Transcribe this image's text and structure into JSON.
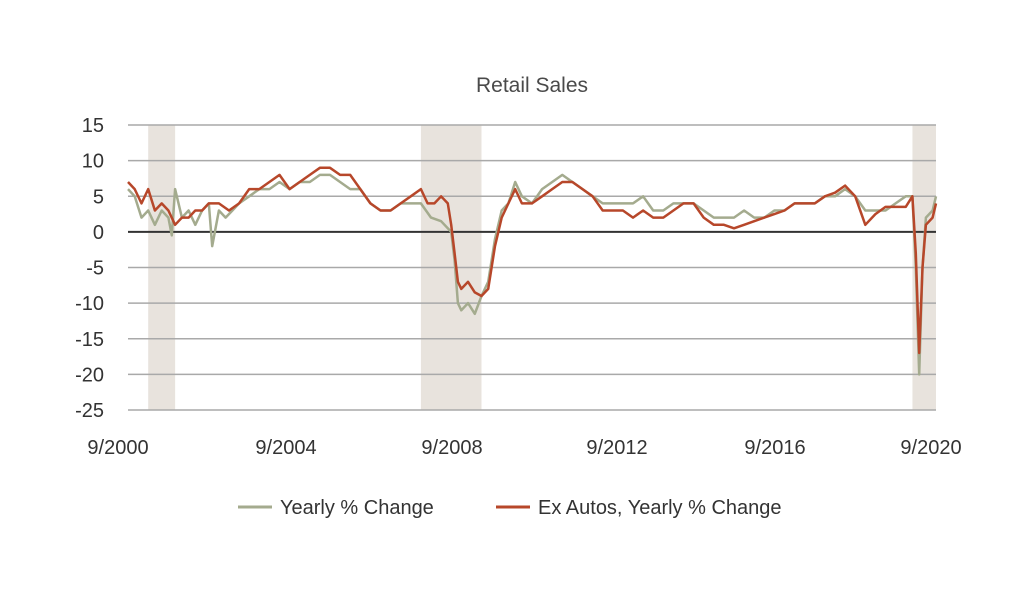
{
  "chart_data": {
    "type": "line",
    "title": "Retail Sales",
    "xlabel": "",
    "ylabel": "",
    "x_tick_labels": [
      "9/2000",
      "9/2004",
      "9/2008",
      "9/2012",
      "9/2016",
      "9/2020"
    ],
    "x_range": [
      "2000-09",
      "2020-09"
    ],
    "ylim": [
      -25,
      15
    ],
    "y_ticks": [
      15,
      10,
      5,
      0,
      -5,
      -10,
      -15,
      -20,
      -25
    ],
    "grid": true,
    "legend_position": "bottom",
    "recession_shading": [
      {
        "start": "2001-03",
        "end": "2001-11"
      },
      {
        "start": "2007-12",
        "end": "2009-06"
      },
      {
        "start": "2020-02",
        "end": "2020-09"
      }
    ],
    "shading_color": "#e8e3dd",
    "series": [
      {
        "name": "Yearly % Change",
        "color": "#a4ab8e",
        "points": [
          [
            "2000-09",
            6
          ],
          [
            "2000-11",
            5
          ],
          [
            "2001-01",
            2
          ],
          [
            "2001-03",
            3
          ],
          [
            "2001-05",
            1
          ],
          [
            "2001-07",
            3
          ],
          [
            "2001-09",
            2
          ],
          [
            "2001-10",
            -0.5
          ],
          [
            "2001-11",
            6
          ],
          [
            "2002-01",
            2
          ],
          [
            "2002-03",
            3
          ],
          [
            "2002-05",
            1
          ],
          [
            "2002-07",
            3
          ],
          [
            "2002-09",
            4
          ],
          [
            "2002-10",
            -2
          ],
          [
            "2002-12",
            3
          ],
          [
            "2003-02",
            2
          ],
          [
            "2003-04",
            3
          ],
          [
            "2003-06",
            4
          ],
          [
            "2003-09",
            5
          ],
          [
            "2003-12",
            6
          ],
          [
            "2004-03",
            6
          ],
          [
            "2004-06",
            7
          ],
          [
            "2004-09",
            6
          ],
          [
            "2004-12",
            7
          ],
          [
            "2005-03",
            7
          ],
          [
            "2005-06",
            8
          ],
          [
            "2005-09",
            8
          ],
          [
            "2005-12",
            7
          ],
          [
            "2006-03",
            6
          ],
          [
            "2006-06",
            6
          ],
          [
            "2006-09",
            4
          ],
          [
            "2006-12",
            3
          ],
          [
            "2007-03",
            3
          ],
          [
            "2007-06",
            4
          ],
          [
            "2007-09",
            4
          ],
          [
            "2007-12",
            4
          ],
          [
            "2008-03",
            2
          ],
          [
            "2008-06",
            1.5
          ],
          [
            "2008-09",
            0
          ],
          [
            "2008-10",
            -4
          ],
          [
            "2008-11",
            -10
          ],
          [
            "2008-12",
            -11
          ],
          [
            "2009-02",
            -10
          ],
          [
            "2009-04",
            -11.5
          ],
          [
            "2009-06",
            -9
          ],
          [
            "2009-08",
            -7
          ],
          [
            "2009-10",
            -1
          ],
          [
            "2009-12",
            3
          ],
          [
            "2010-02",
            4
          ],
          [
            "2010-04",
            7
          ],
          [
            "2010-06",
            5
          ],
          [
            "2010-09",
            4
          ],
          [
            "2010-12",
            6
          ],
          [
            "2011-03",
            7
          ],
          [
            "2011-06",
            8
          ],
          [
            "2011-09",
            7
          ],
          [
            "2011-12",
            6
          ],
          [
            "2012-03",
            5
          ],
          [
            "2012-06",
            4
          ],
          [
            "2012-09",
            4
          ],
          [
            "2012-12",
            4
          ],
          [
            "2013-03",
            4
          ],
          [
            "2013-06",
            5
          ],
          [
            "2013-09",
            3
          ],
          [
            "2013-12",
            3
          ],
          [
            "2014-03",
            4
          ],
          [
            "2014-06",
            4
          ],
          [
            "2014-09",
            4
          ],
          [
            "2014-12",
            3
          ],
          [
            "2015-03",
            2
          ],
          [
            "2015-06",
            2
          ],
          [
            "2015-09",
            2
          ],
          [
            "2015-12",
            3
          ],
          [
            "2016-03",
            2
          ],
          [
            "2016-06",
            2
          ],
          [
            "2016-09",
            3
          ],
          [
            "2016-12",
            3
          ],
          [
            "2017-03",
            4
          ],
          [
            "2017-06",
            4
          ],
          [
            "2017-09",
            4
          ],
          [
            "2017-12",
            5
          ],
          [
            "2018-03",
            5
          ],
          [
            "2018-06",
            6
          ],
          [
            "2018-09",
            5
          ],
          [
            "2018-12",
            3
          ],
          [
            "2019-03",
            3
          ],
          [
            "2019-06",
            3
          ],
          [
            "2019-09",
            4
          ],
          [
            "2019-12",
            5
          ],
          [
            "2020-02",
            5
          ],
          [
            "2020-03",
            -5
          ],
          [
            "2020-04",
            -20
          ],
          [
            "2020-05",
            -5
          ],
          [
            "2020-06",
            2
          ],
          [
            "2020-08",
            3
          ],
          [
            "2020-09",
            5
          ]
        ]
      },
      {
        "name": "Ex Autos, Yearly % Change",
        "color": "#b7472a",
        "points": [
          [
            "2000-09",
            7
          ],
          [
            "2000-11",
            6
          ],
          [
            "2001-01",
            4
          ],
          [
            "2001-03",
            6
          ],
          [
            "2001-05",
            3
          ],
          [
            "2001-07",
            4
          ],
          [
            "2001-09",
            3
          ],
          [
            "2001-11",
            1
          ],
          [
            "2002-01",
            2
          ],
          [
            "2002-03",
            2
          ],
          [
            "2002-05",
            3
          ],
          [
            "2002-07",
            3
          ],
          [
            "2002-09",
            4
          ],
          [
            "2002-12",
            4
          ],
          [
            "2003-03",
            3
          ],
          [
            "2003-06",
            4
          ],
          [
            "2003-09",
            6
          ],
          [
            "2003-12",
            6
          ],
          [
            "2004-03",
            7
          ],
          [
            "2004-06",
            8
          ],
          [
            "2004-09",
            6
          ],
          [
            "2004-12",
            7
          ],
          [
            "2005-03",
            8
          ],
          [
            "2005-06",
            9
          ],
          [
            "2005-09",
            9
          ],
          [
            "2005-12",
            8
          ],
          [
            "2006-03",
            8
          ],
          [
            "2006-06",
            6
          ],
          [
            "2006-09",
            4
          ],
          [
            "2006-12",
            3
          ],
          [
            "2007-03",
            3
          ],
          [
            "2007-06",
            4
          ],
          [
            "2007-09",
            5
          ],
          [
            "2007-12",
            6
          ],
          [
            "2008-02",
            4
          ],
          [
            "2008-04",
            4
          ],
          [
            "2008-06",
            5
          ],
          [
            "2008-08",
            4
          ],
          [
            "2008-09",
            1
          ],
          [
            "2008-10",
            -3
          ],
          [
            "2008-11",
            -7
          ],
          [
            "2008-12",
            -8
          ],
          [
            "2009-02",
            -7
          ],
          [
            "2009-04",
            -8.5
          ],
          [
            "2009-06",
            -9
          ],
          [
            "2009-08",
            -8
          ],
          [
            "2009-10",
            -2
          ],
          [
            "2009-12",
            2
          ],
          [
            "2010-02",
            4
          ],
          [
            "2010-04",
            6
          ],
          [
            "2010-06",
            4
          ],
          [
            "2010-09",
            4
          ],
          [
            "2010-12",
            5
          ],
          [
            "2011-03",
            6
          ],
          [
            "2011-06",
            7
          ],
          [
            "2011-09",
            7
          ],
          [
            "2011-12",
            6
          ],
          [
            "2012-03",
            5
          ],
          [
            "2012-06",
            3
          ],
          [
            "2012-09",
            3
          ],
          [
            "2012-12",
            3
          ],
          [
            "2013-03",
            2
          ],
          [
            "2013-06",
            3
          ],
          [
            "2013-09",
            2
          ],
          [
            "2013-12",
            2
          ],
          [
            "2014-03",
            3
          ],
          [
            "2014-06",
            4
          ],
          [
            "2014-09",
            4
          ],
          [
            "2014-12",
            2
          ],
          [
            "2015-03",
            1
          ],
          [
            "2015-06",
            1
          ],
          [
            "2015-09",
            0.5
          ],
          [
            "2015-12",
            1
          ],
          [
            "2016-03",
            1.5
          ],
          [
            "2016-06",
            2
          ],
          [
            "2016-09",
            2.5
          ],
          [
            "2016-12",
            3
          ],
          [
            "2017-03",
            4
          ],
          [
            "2017-06",
            4
          ],
          [
            "2017-09",
            4
          ],
          [
            "2017-12",
            5
          ],
          [
            "2018-03",
            5.5
          ],
          [
            "2018-06",
            6.5
          ],
          [
            "2018-09",
            5
          ],
          [
            "2018-12",
            1
          ],
          [
            "2019-03",
            2.5
          ],
          [
            "2019-06",
            3.5
          ],
          [
            "2019-09",
            3.5
          ],
          [
            "2019-12",
            3.5
          ],
          [
            "2020-02",
            5
          ],
          [
            "2020-03",
            -3
          ],
          [
            "2020-04",
            -17
          ],
          [
            "2020-05",
            -5
          ],
          [
            "2020-06",
            1
          ],
          [
            "2020-08",
            2
          ],
          [
            "2020-09",
            4
          ]
        ]
      }
    ]
  }
}
